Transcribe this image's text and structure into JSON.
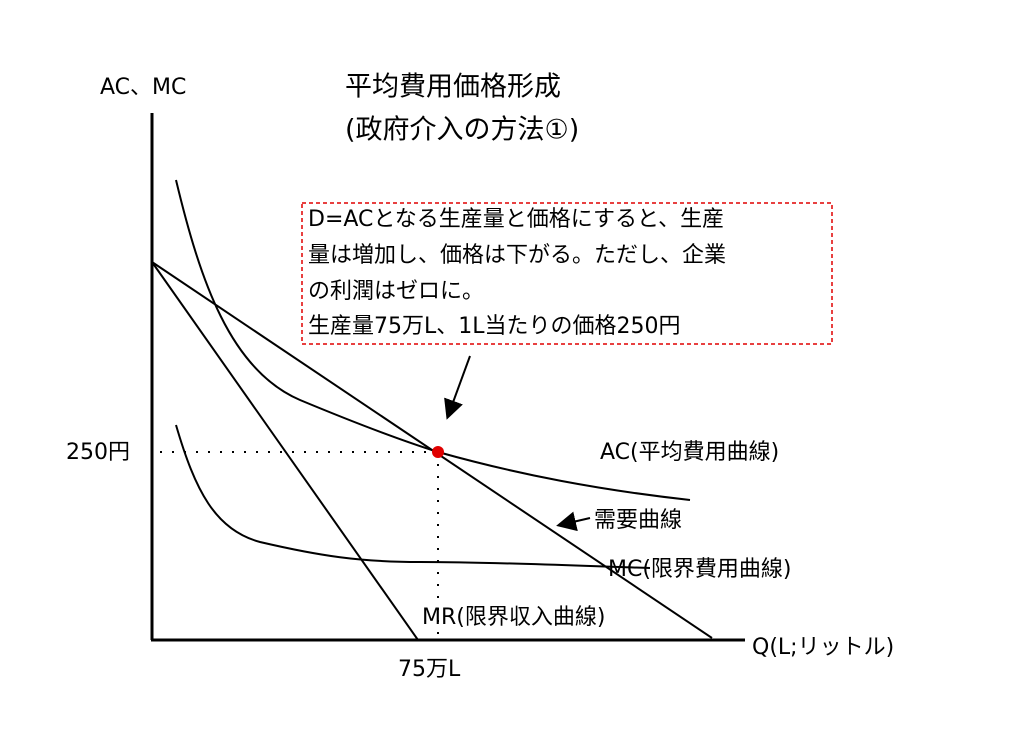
{
  "axes": {
    "y_label": "AC、MC",
    "x_label": "Q(L;リットル)",
    "y_mark": "250円",
    "x_mark": "75万L"
  },
  "title": {
    "lines": [
      "平均費用価格形成",
      "(政府介入の方法①)"
    ]
  },
  "annotation": {
    "lines": [
      "D=ACとなる生産量と価格にすると、生産",
      "量は増加し、価格は下がる。ただし、企業",
      "の利潤はゼロに。",
      "生産量75万L、1L当たりの価格250円"
    ]
  },
  "curves": {
    "ac": "AC(平均費用曲線)",
    "demand": "需要曲線",
    "mc": "MC(限界費用曲線)",
    "mr": "MR(限界収入曲線)"
  }
}
